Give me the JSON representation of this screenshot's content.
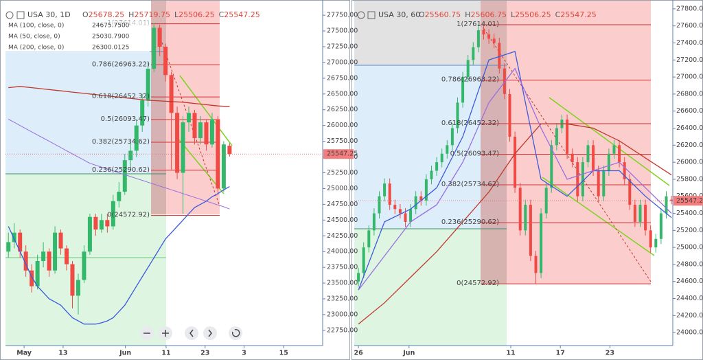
{
  "chart_data": [
    {
      "type": "candlestick",
      "title": "USA 30, 1D",
      "ohlc_prefixes": [
        "O",
        "H",
        "L",
        "C"
      ],
      "up_color": "#33b86b",
      "down_color": "#ef4a44",
      "open": [
        24000,
        24150,
        24300,
        24000,
        23700,
        23450,
        23850,
        24000,
        23700,
        24300,
        24050,
        23800,
        23300,
        23550,
        24000,
        24550,
        24350,
        24500,
        24400,
        24800,
        24950,
        25450,
        25600,
        26000,
        26400,
        26900,
        27550,
        27250,
        26800,
        26200,
        25250,
        26050,
        26200,
        25800,
        26050,
        25700,
        26100,
        25000,
        25678.25
      ],
      "high": [
        24300,
        24450,
        24350,
        24100,
        23800,
        23950,
        24150,
        24050,
        24400,
        24350,
        24100,
        23850,
        23650,
        24100,
        24600,
        24600,
        24600,
        24600,
        24900,
        25100,
        25550,
        25750,
        26100,
        26500,
        27000,
        27614,
        27600,
        27300,
        26850,
        26300,
        26150,
        26300,
        26250,
        26150,
        26100,
        26200,
        26150,
        25750,
        25719.75
      ],
      "low": [
        23900,
        24050,
        23900,
        23600,
        23350,
        23400,
        23750,
        23600,
        23650,
        23950,
        23700,
        23100,
        23000,
        23500,
        23950,
        24250,
        24300,
        24300,
        24350,
        24700,
        24900,
        25300,
        25500,
        25900,
        26300,
        26850,
        27100,
        26700,
        25300,
        25150,
        24600,
        25900,
        25700,
        25700,
        25600,
        25650,
        24900,
        24950,
        25506.25
      ],
      "close": [
        24150,
        24300,
        24000,
        23700,
        23450,
        23850,
        24000,
        23700,
        24300,
        24050,
        23800,
        23300,
        23550,
        24000,
        24550,
        24350,
        24500,
        24400,
        24800,
        24950,
        25450,
        25600,
        26000,
        26400,
        26900,
        27550,
        27250,
        26800,
        26200,
        25250,
        26050,
        26200,
        25800,
        26050,
        25700,
        26100,
        25000,
        25700,
        25547.25
      ],
      "series": [
        {
          "name": "MA (100, close, 0)",
          "color": "#9a6fe0",
          "value_label": "24675.7500",
          "values": [
            26100,
            26050,
            26000,
            25950,
            25900,
            25850,
            25800,
            25750,
            25700,
            25650,
            25600,
            25550,
            25500,
            25450,
            25400,
            25370,
            25340,
            25310,
            25280,
            25250,
            25220,
            25190,
            25160,
            25130,
            25100,
            25070,
            25040,
            25010,
            24980,
            24950,
            24920,
            24890,
            24860,
            24830,
            24800,
            24770,
            24740,
            24710,
            24675.75
          ]
        },
        {
          "name": "MA (50, close, 0)",
          "color": "#3b5bdb",
          "value_label": "25030.7900",
          "values": [
            24400,
            24200,
            24000,
            23800,
            23600,
            23450,
            23350,
            23250,
            23200,
            23150,
            23050,
            22950,
            22900,
            22850,
            22850,
            22850,
            22870,
            22900,
            22950,
            23050,
            23150,
            23300,
            23450,
            23600,
            23750,
            23900,
            24050,
            24200,
            24300,
            24400,
            24500,
            24600,
            24700,
            24750,
            24800,
            24870,
            24920,
            24980,
            25030.79
          ]
        },
        {
          "name": "MA (200, close, 0)",
          "color": "#c0392b",
          "value_label": "26300.0125",
          "values": [
            26600,
            26610,
            26620,
            26610,
            26600,
            26590,
            26580,
            26570,
            26560,
            26550,
            26540,
            26530,
            26520,
            26510,
            26500,
            26490,
            26480,
            26470,
            26460,
            26450,
            26440,
            26430,
            26420,
            26410,
            26400,
            26395,
            26390,
            26385,
            26380,
            26375,
            26370,
            26360,
            26350,
            26340,
            26330,
            26320,
            26310,
            26305,
            26300.0125
          ]
        }
      ],
      "fib_color": "#d32f2f",
      "fib_levels": [
        {
          "value": 27614.01,
          "label": "1(27614.01)"
        },
        {
          "value": 26963.22,
          "label": "0.786(26963.22)"
        },
        {
          "value": 26452.32,
          "label": "0.618(26452.32)"
        },
        {
          "value": 26093.47,
          "label": "0.5(26093.47)"
        },
        {
          "value": 25734.62,
          "label": "0.382(25734.62)"
        },
        {
          "value": 25290.62,
          "label": "0.236(25290.62)"
        },
        {
          "value": 24572.92,
          "label": "0(24572.92)"
        }
      ],
      "xlim": [
        -0.5,
        54
      ],
      "xticks": [
        {
          "value": 2.7,
          "label": "May"
        },
        {
          "value": 9.4,
          "label": "13"
        },
        {
          "value": 20.1,
          "label": "Jun"
        },
        {
          "value": 27.1,
          "label": "11"
        },
        {
          "value": 33.8,
          "label": "23"
        },
        {
          "value": 40.5,
          "label": "3"
        },
        {
          "value": 47.3,
          "label": "15"
        }
      ],
      "ylim": [
        22509,
        27991
      ],
      "yticks": [
        {
          "value": 22750,
          "label": "22750.00"
        },
        {
          "value": 23000,
          "label": "23000.00"
        },
        {
          "value": 23250,
          "label": "23250.00"
        },
        {
          "value": 23500,
          "label": "23500.00"
        },
        {
          "value": 23750,
          "label": "23750.00"
        },
        {
          "value": 24000,
          "label": "24000.00"
        },
        {
          "value": 24250,
          "label": "24250.00"
        },
        {
          "value": 24500,
          "label": "24500.00"
        },
        {
          "value": 24750,
          "label": "24750.00"
        },
        {
          "value": 25000,
          "label": "25000.00"
        },
        {
          "value": 25250,
          "label": "25250.00"
        },
        {
          "value": 25500,
          "label": "25500.00"
        },
        {
          "value": 25750,
          "label": "25750.00"
        },
        {
          "value": 26000,
          "label": "26000.00"
        },
        {
          "value": 26250,
          "label": "26250.00"
        },
        {
          "value": 26500,
          "label": "26500.00"
        },
        {
          "value": 26750,
          "label": "26750.00"
        },
        {
          "value": 27000,
          "label": "27000.00"
        },
        {
          "value": 27250,
          "label": "27250.00"
        },
        {
          "value": 27500,
          "label": "27500.00"
        },
        {
          "value": 27750,
          "label": "27750.00"
        }
      ]
    },
    {
      "type": "candlestick",
      "title": "USA 30, 60",
      "ohlc_prefixes": [
        "O",
        "H",
        "L",
        "C"
      ],
      "up_color": "#33b86b",
      "down_color": "#ef4a44",
      "open": [
        24600,
        24700,
        25000,
        25200,
        25400,
        25600,
        25750,
        25500,
        25450,
        25400,
        25300,
        25450,
        25600,
        25550,
        25800,
        25900,
        26000,
        26100,
        26200,
        26400,
        26700,
        27000,
        27200,
        27350,
        27550,
        27500,
        27450,
        27400,
        27100,
        26800,
        26300,
        25700,
        25200,
        25500,
        24900,
        24700,
        25400,
        25700,
        26200,
        26400,
        26500,
        26100,
        26000,
        25600,
        26000,
        26200,
        25900,
        25600,
        25900,
        26100,
        26200,
        26000,
        25800,
        25500,
        25300,
        25500,
        25200,
        25000,
        25100,
        25400,
        25560.75
      ],
      "high": [
        24760,
        25060,
        25260,
        25460,
        25660,
        25810,
        25810,
        25560,
        25510,
        25460,
        25510,
        25660,
        25660,
        25860,
        25960,
        26060,
        26160,
        26260,
        26460,
        26760,
        27060,
        27260,
        27410,
        27614,
        27610,
        27560,
        27510,
        27460,
        27160,
        26860,
        26360,
        25760,
        25560,
        25560,
        24960,
        25460,
        25760,
        26260,
        26460,
        26560,
        26560,
        26160,
        26060,
        26060,
        26260,
        26260,
        25960,
        25960,
        26160,
        26260,
        26260,
        26060,
        25860,
        25560,
        25560,
        25560,
        25260,
        25160,
        25460,
        25660,
        25606.75
      ],
      "low": [
        24540,
        24640,
        24940,
        25140,
        25340,
        25540,
        25440,
        25390,
        25340,
        25240,
        25240,
        25390,
        25490,
        25490,
        25740,
        25840,
        25940,
        26040,
        26140,
        26340,
        26640,
        26940,
        27140,
        27290,
        27440,
        27390,
        27340,
        27040,
        26740,
        26240,
        25640,
        25140,
        25140,
        24840,
        24573,
        24640,
        25340,
        25640,
        26140,
        26340,
        26040,
        25940,
        25540,
        25540,
        25940,
        25840,
        25540,
        25540,
        25840,
        26040,
        25940,
        25740,
        25440,
        25240,
        25240,
        25140,
        24940,
        24940,
        25040,
        25340,
        25506.25
      ],
      "close": [
        24700,
        25000,
        25200,
        25400,
        25600,
        25750,
        25500,
        25450,
        25400,
        25300,
        25450,
        25600,
        25550,
        25800,
        25900,
        26000,
        26100,
        26200,
        26400,
        26700,
        27000,
        27200,
        27350,
        27550,
        27500,
        27450,
        27400,
        27100,
        26800,
        26300,
        25700,
        25200,
        25500,
        24900,
        24700,
        25400,
        25700,
        26200,
        26400,
        26500,
        26100,
        26000,
        25600,
        26000,
        26200,
        25900,
        25600,
        25900,
        26100,
        26200,
        26000,
        25800,
        25500,
        25300,
        25500,
        25200,
        25000,
        25100,
        25400,
        25600,
        25547.25
      ],
      "series": [
        {
          "color": "#c0392b",
          "x": [
            0,
            5,
            10,
            15,
            20,
            25,
            30,
            35,
            40,
            45,
            50,
            55,
            60
          ],
          "values": [
            24100,
            24350,
            24650,
            24950,
            25300,
            25650,
            26100,
            26450,
            26450,
            26400,
            26250,
            26050,
            25850
          ]
        },
        {
          "color": "#3b5bdb",
          "x": [
            0,
            5,
            10,
            15,
            20,
            25,
            30,
            35,
            40,
            45,
            50,
            55,
            60
          ],
          "values": [
            24500,
            25300,
            25450,
            25700,
            26300,
            27200,
            27300,
            25800,
            25600,
            25900,
            25900,
            25600,
            25350
          ]
        },
        {
          "color": "#9a6fe0",
          "x": [
            0,
            5,
            10,
            15,
            20,
            25,
            30,
            35,
            40,
            45,
            50,
            55,
            60
          ],
          "values": [
            24500,
            24900,
            25300,
            25500,
            26000,
            26700,
            27100,
            26400,
            25800,
            25900,
            26000,
            25700,
            25400
          ]
        }
      ],
      "fib_color": "#d32f2f",
      "fib_levels": [
        {
          "value": 27614.01,
          "label": "1(27614.01)"
        },
        {
          "value": 26963.22,
          "label": "0.786(26963.22)"
        },
        {
          "value": 26452.32,
          "label": "0.618(26452.32)"
        },
        {
          "value": 26093.47,
          "label": "0.5(26093.47)"
        },
        {
          "value": 25734.62,
          "label": "0.382(25734.62)"
        },
        {
          "value": 25290.62,
          "label": "0.236(25290.62)"
        },
        {
          "value": 24572.92,
          "label": "0(24572.92)"
        }
      ],
      "xlim": [
        -0.8,
        60.25
      ],
      "xticks": [
        {
          "value": 0,
          "label": "26"
        },
        {
          "value": 9.7,
          "label": "Jun"
        },
        {
          "value": 29.2,
          "label": "11"
        },
        {
          "value": 38.7,
          "label": "17"
        },
        {
          "value": 48.2,
          "label": "23"
        }
      ],
      "ylim": [
        23848,
        27904
      ],
      "yticks": [
        {
          "value": 24000,
          "label": "24000.00"
        },
        {
          "value": 24200,
          "label": "24200.00"
        },
        {
          "value": 24400,
          "label": "24400.00"
        },
        {
          "value": 24600,
          "label": "24600.00"
        },
        {
          "value": 24800,
          "label": "24800.00"
        },
        {
          "value": 25000,
          "label": "25000.00"
        },
        {
          "value": 25200,
          "label": "25200.00"
        },
        {
          "value": 25400,
          "label": "25400.00"
        },
        {
          "value": 25600,
          "label": "25600.00"
        },
        {
          "value": 25800,
          "label": "25800.00"
        },
        {
          "value": 26000,
          "label": "26000.00"
        },
        {
          "value": 26200,
          "label": "26200.00"
        },
        {
          "value": 26400,
          "label": "26400.00"
        },
        {
          "value": 26600,
          "label": "26600.00"
        },
        {
          "value": 26800,
          "label": "26800.00"
        },
        {
          "value": 27000,
          "label": "27000.00"
        },
        {
          "value": 27200,
          "label": "27200.00"
        },
        {
          "value": 27400,
          "label": "27400.00"
        },
        {
          "value": 27600,
          "label": "27600.00"
        },
        {
          "value": 27800,
          "label": "27800.00"
        }
      ]
    }
  ]
}
